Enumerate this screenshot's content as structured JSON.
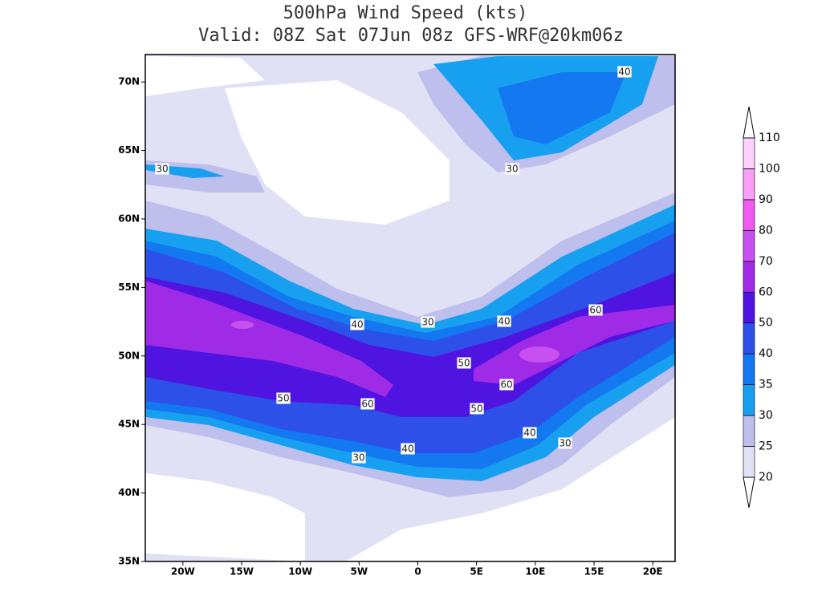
{
  "title": {
    "line1": "500hPa Wind Speed (kts)",
    "line2": "Valid: 08Z Sat 07Jun 08z GFS-WRF@20km06z"
  },
  "map": {
    "lonlim": [
      -23.2,
      21.9
    ],
    "latlim": [
      35,
      72
    ],
    "lat_ticks": [
      {
        "value": 70,
        "label": "70N"
      },
      {
        "value": 65,
        "label": "65N"
      },
      {
        "value": 60,
        "label": "60N"
      },
      {
        "value": 55,
        "label": "55N"
      },
      {
        "value": 50,
        "label": "50N"
      },
      {
        "value": 45,
        "label": "45N"
      },
      {
        "value": 40,
        "label": "40N"
      },
      {
        "value": 35,
        "label": "35N"
      }
    ],
    "lon_ticks": [
      {
        "value": -20,
        "label": "20W"
      },
      {
        "value": -15,
        "label": "15W"
      },
      {
        "value": -10,
        "label": "10W"
      },
      {
        "value": -5,
        "label": "5W"
      },
      0,
      {
        "value": 5,
        "label": "5E"
      },
      {
        "value": 10,
        "label": "10E"
      },
      {
        "value": 15,
        "label": "15E"
      },
      {
        "value": 20,
        "label": "20E"
      }
    ]
  },
  "colorbar": {
    "levels": [
      20,
      25,
      30,
      35,
      40,
      50,
      60,
      70,
      80,
      90,
      100,
      110
    ],
    "colors": [
      "#e1e1f5",
      "#bfbfed",
      "#18a0f0",
      "#1478f0",
      "#2c50e8",
      "#5014e0",
      "#a02be6",
      "#c850f0",
      "#f05af0",
      "#f8a0f8",
      "#fcd2fc"
    ]
  },
  "contour_labels": [
    40,
    30,
    30,
    40,
    30,
    40,
    60,
    50,
    60,
    50,
    60,
    50,
    40,
    30,
    40,
    30
  ]
}
